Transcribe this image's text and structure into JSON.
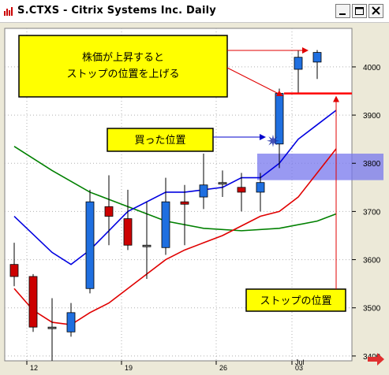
{
  "window": {
    "title": "S.CTXS - Citrix Systems Inc. Daily"
  },
  "chart_data": {
    "type": "candlestick",
    "title": "S.CTXS - Citrix Systems Inc. Daily",
    "ylim": [
      3390,
      4080
    ],
    "y_ticks": [
      3400,
      3500,
      3600,
      3700,
      3800,
      3900,
      4000
    ],
    "x_labels": [
      {
        "index": 1,
        "label": "12"
      },
      {
        "index": 6,
        "label": "19"
      },
      {
        "index": 11,
        "label": "26"
      },
      {
        "index": 15,
        "label": "Jul"
      },
      {
        "index": 15,
        "label": "03"
      }
    ],
    "candles": [
      {
        "index": 0,
        "open": 3565,
        "high": 3635,
        "low": 3545,
        "close": 3590,
        "color": "red"
      },
      {
        "index": 1,
        "open": 3565,
        "high": 3570,
        "low": 3450,
        "close": 3460,
        "color": "red"
      },
      {
        "index": 2,
        "open": 3460,
        "high": 3520,
        "low": 3390,
        "close": 3460,
        "color": "gray"
      },
      {
        "index": 3,
        "open": 3450,
        "high": 3510,
        "low": 3440,
        "close": 3490,
        "color": "blue"
      },
      {
        "index": 4,
        "open": 3540,
        "high": 3745,
        "low": 3530,
        "close": 3720,
        "color": "blue"
      },
      {
        "index": 5,
        "open": 3710,
        "high": 3775,
        "low": 3630,
        "close": 3690,
        "color": "red"
      },
      {
        "index": 6,
        "open": 3685,
        "high": 3745,
        "low": 3620,
        "close": 3630,
        "color": "red"
      },
      {
        "index": 7,
        "open": 3630,
        "high": 3720,
        "low": 3560,
        "close": 3630,
        "color": "gray"
      },
      {
        "index": 8,
        "open": 3625,
        "high": 3770,
        "low": 3610,
        "close": 3720,
        "color": "blue"
      },
      {
        "index": 9,
        "open": 3715,
        "high": 3755,
        "low": 3630,
        "close": 3720,
        "color": "red"
      },
      {
        "index": 10,
        "open": 3730,
        "high": 3820,
        "low": 3705,
        "close": 3755,
        "color": "blue"
      },
      {
        "index": 11,
        "open": 3760,
        "high": 3785,
        "low": 3730,
        "close": 3760,
        "color": "gray"
      },
      {
        "index": 12,
        "open": 3750,
        "high": 3780,
        "low": 3700,
        "close": 3740,
        "color": "red"
      },
      {
        "index": 13,
        "open": 3740,
        "high": 3780,
        "low": 3700,
        "close": 3760,
        "color": "blue"
      },
      {
        "index": 14,
        "open": 3840,
        "high": 3955,
        "low": 3790,
        "close": 3945,
        "color": "blue"
      },
      {
        "index": 15,
        "open": 3995,
        "high": 4035,
        "low": 3945,
        "close": 4020,
        "color": "blue"
      },
      {
        "index": 16,
        "open": 4010,
        "high": 4035,
        "low": 3975,
        "close": 4030,
        "color": "blue"
      }
    ],
    "series": [
      {
        "color": "#008000",
        "x": [
          0,
          2,
          4,
          6,
          8,
          10,
          12,
          14,
          16,
          17
        ],
        "values": [
          3835,
          3785,
          3740,
          3710,
          3680,
          3665,
          3660,
          3665,
          3680,
          3695
        ]
      },
      {
        "color": "#0000e0",
        "x": [
          0,
          2,
          3,
          4,
          6,
          8,
          9,
          10,
          11,
          12,
          13,
          14,
          15,
          16,
          17
        ],
        "values": [
          3690,
          3615,
          3590,
          3620,
          3700,
          3740,
          3740,
          3745,
          3750,
          3770,
          3770,
          3800,
          3850,
          3880,
          3910
        ]
      },
      {
        "color": "#e00000",
        "x": [
          0,
          1,
          2,
          3,
          4,
          5,
          6,
          7,
          8,
          9,
          10,
          11,
          12,
          13,
          14,
          15,
          16,
          17
        ],
        "values": [
          3540,
          3495,
          3470,
          3465,
          3490,
          3510,
          3540,
          3570,
          3600,
          3620,
          3635,
          3650,
          3670,
          3690,
          3700,
          3730,
          3780,
          3830
        ]
      }
    ],
    "stop_level": 3945,
    "highlight_zone": [
      3765,
      3820
    ],
    "annotations": {
      "main_callout": [
        "株価が上昇すると",
        "ストップの位置を上げる"
      ],
      "entry_callout": "買った位置",
      "stop_callout": "ストップの位置"
    }
  }
}
